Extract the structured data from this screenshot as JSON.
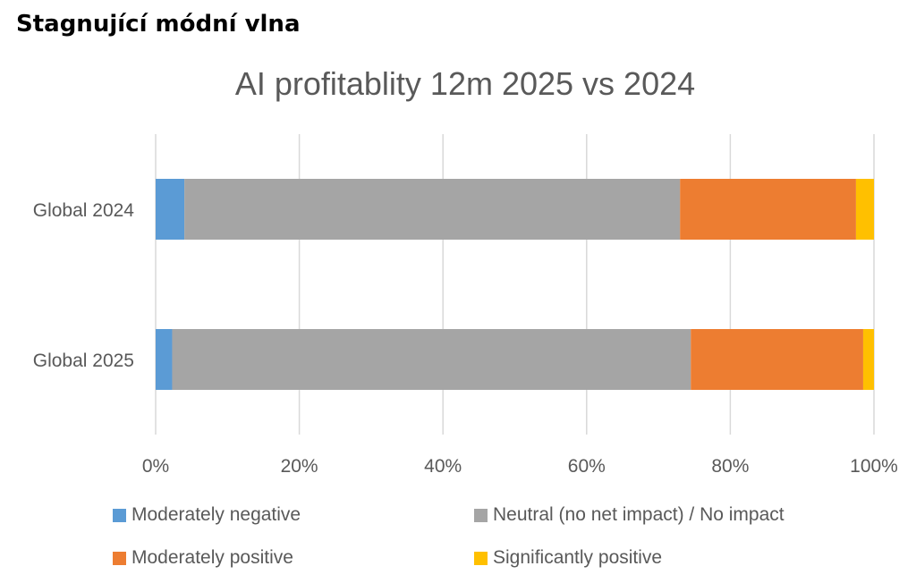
{
  "page": {
    "heading": "Stagnující módní vlna"
  },
  "chart_data": {
    "type": "bar",
    "orientation": "horizontal",
    "stacked": "percent",
    "title": "AI profitablity 12m 2025 vs 2024",
    "categories": [
      "Global 2024",
      "Global 2025"
    ],
    "series": [
      {
        "name": "Moderately negative",
        "color": "#5B9BD5",
        "values": [
          4,
          2.3
        ]
      },
      {
        "name": "Neutral (no net impact) / No impact",
        "color": "#A5A5A5",
        "values": [
          69,
          72.2
        ]
      },
      {
        "name": "Moderately positive",
        "color": "#ED7D31",
        "values": [
          24.5,
          24
        ]
      },
      {
        "name": "Significantly positive",
        "color": "#FFC000",
        "values": [
          2.5,
          1.5
        ]
      }
    ],
    "xlim": [
      0,
      100
    ],
    "x_ticks": [
      "0%",
      "20%",
      "40%",
      "60%",
      "80%",
      "100%"
    ],
    "xlabel": "",
    "ylabel": "",
    "grid": "vertical",
    "legend_position": "bottom"
  }
}
